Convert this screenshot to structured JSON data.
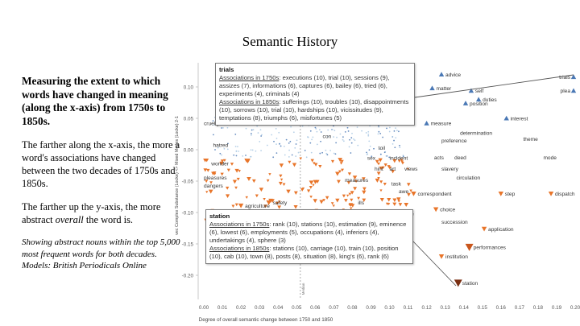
{
  "slide": {
    "title": "Semantic History",
    "heading": "Measuring the extent to which words have changed in meaning (along the x-axis) from 1750s to 1850s.",
    "para1": "The farther along the x-axis, the more a word's associations have changed between the two decades of 1750s and 1850s.",
    "para2_a": "The farther up the y-axis, the more abstract ",
    "para2_em": "overall",
    "para2_b": " the word is.",
    "note1": "Showing abstract nouns within the top 5,000 most frequent words for both decades.",
    "note2": "Models: British Periodicals Online"
  },
  "tooltips": {
    "trials": {
      "word": "trials",
      "label_1750": "Associations in 1750s",
      "text_1750": ": executions (10), trial (10), sessions (9), assizes (7), informations (6), captures (6), bailey (6), tried (6), experiments (4), criminals (4)",
      "label_1850": "Associations in 1850s",
      "text_1850": ": sufferings (10), troubles (10), disappointments (10), sorrows (10), trial (10), hardships (10), vicissitudes (9), temptations (8), triumphs (6), misfortunes (5)"
    },
    "station": {
      "word": "station",
      "label_1750": "Associations in 1750s",
      "text_1750": ": rank (10), stations (10), estimation (9), eminence (6), lowest (6), employments (5), occupations (4), inferiors (4), undertakings (4), sphere (3)",
      "label_1850": "Associations in 1850s",
      "text_1850": ": stations (10), carriage (10), train (10), position (10), cab (10), town (8), posts (8), situation (8), king's (6), rank (6)"
    }
  },
  "chart_data": {
    "type": "scatter",
    "title": "",
    "xlabel": "Degree of overall semantic change between 1750 and 1850",
    "ylabel": "vec Complex Substance (Locke) <> Mixed Modes (Locke) 2-1",
    "xlim": [
      0.0,
      0.2
    ],
    "ylim": [
      -0.22,
      0.135
    ],
    "x_ticks": [
      "0.00",
      "0.01",
      "0.02",
      "0.03",
      "0.04",
      "0.05",
      "0.06",
      "0.07",
      "0.08",
      "0.09",
      "0.10",
      "0.11",
      "0.12",
      "0.13",
      "0.14",
      "0.15",
      "0.16",
      "0.17",
      "0.18",
      "0.19",
      "0.20"
    ],
    "y_ticks": [
      0.1,
      0.05,
      0.0,
      -0.05,
      -0.1,
      -0.15,
      -0.2
    ],
    "y_tick_labels": [
      "0.10",
      "0.05",
      "0.00",
      "-0.05",
      "-0.10",
      "-0.15",
      "-0.20"
    ],
    "median_label": "Median",
    "median_x": 0.052,
    "colors": {
      "abstract": "#4a78b5",
      "concrete": "#e8752a",
      "neutral": "#a9c8e3",
      "tooltip_border": "#7a7a7a",
      "axis": "#bdbdbd"
    },
    "labeled_points": [
      {
        "word": "advice",
        "x": 0.128,
        "y": 0.12,
        "marker": "triangle-up"
      },
      {
        "word": "trials",
        "x": 0.2,
        "y": 0.116,
        "marker": "triangle-up"
      },
      {
        "word": "matter",
        "x": 0.123,
        "y": 0.098,
        "marker": "triangle-up"
      },
      {
        "word": "self",
        "x": 0.144,
        "y": 0.094,
        "marker": "triangle-up"
      },
      {
        "word": "plea",
        "x": 0.2,
        "y": 0.094,
        "marker": "triangle-up"
      },
      {
        "word": "duties",
        "x": 0.148,
        "y": 0.08,
        "marker": "triangle-up"
      },
      {
        "word": "position",
        "x": 0.141,
        "y": 0.074,
        "marker": "triangle-up"
      },
      {
        "word": "interest",
        "x": 0.163,
        "y": 0.05,
        "marker": "triangle-up"
      },
      {
        "word": "measure",
        "x": 0.12,
        "y": 0.042,
        "marker": "triangle-up"
      },
      {
        "word": "determination",
        "x": 0.138,
        "y": 0.027,
        "marker": "none"
      },
      {
        "word": "theme",
        "x": 0.172,
        "y": 0.017,
        "marker": "none"
      },
      {
        "word": "preference",
        "x": 0.128,
        "y": 0.015,
        "marker": "none"
      },
      {
        "word": "cruelty",
        "x": 0.0,
        "y": 0.042,
        "marker": "none"
      },
      {
        "word": "hatred",
        "x": 0.005,
        "y": 0.008,
        "marker": "none"
      },
      {
        "word": "con",
        "x": 0.064,
        "y": 0.022,
        "marker": "none"
      },
      {
        "word": "toil",
        "x": 0.094,
        "y": 0.003,
        "marker": "none"
      },
      {
        "word": "sex",
        "x": 0.088,
        "y": -0.013,
        "marker": "none"
      },
      {
        "word": "incident",
        "x": 0.1,
        "y": -0.013,
        "marker": "none"
      },
      {
        "word": "acts",
        "x": 0.124,
        "y": -0.012,
        "marker": "none"
      },
      {
        "word": "deed",
        "x": 0.135,
        "y": -0.012,
        "marker": "none"
      },
      {
        "word": "mode",
        "x": 0.19,
        "y": -0.012,
        "marker": "none"
      },
      {
        "word": "hint",
        "x": 0.092,
        "y": -0.03,
        "marker": "none"
      },
      {
        "word": "art",
        "x": 0.1,
        "y": -0.03,
        "marker": "none"
      },
      {
        "word": "views",
        "x": 0.108,
        "y": -0.03,
        "marker": "none"
      },
      {
        "word": "slavery",
        "x": 0.128,
        "y": -0.03,
        "marker": "none"
      },
      {
        "word": "wonder",
        "x": 0.004,
        "y": -0.022,
        "marker": "none"
      },
      {
        "word": "pleasures",
        "x": 0.0,
        "y": -0.044,
        "marker": "none"
      },
      {
        "word": "dangers",
        "x": 0.0,
        "y": -0.057,
        "marker": "none"
      },
      {
        "word": "measures",
        "x": 0.076,
        "y": -0.048,
        "marker": "none"
      },
      {
        "word": "task",
        "x": 0.101,
        "y": -0.054,
        "marker": "none"
      },
      {
        "word": "circulation",
        "x": 0.136,
        "y": -0.044,
        "marker": "none"
      },
      {
        "word": "awe",
        "x": 0.105,
        "y": -0.066,
        "marker": "none"
      },
      {
        "word": "correspondent",
        "x": 0.113,
        "y": -0.07,
        "marker": "triangle-down"
      },
      {
        "word": "step",
        "x": 0.16,
        "y": -0.07,
        "marker": "triangle-down"
      },
      {
        "word": "dispatch",
        "x": 0.187,
        "y": -0.07,
        "marker": "triangle-down"
      },
      {
        "word": "safety",
        "x": 0.035,
        "y": -0.084,
        "marker": "triangle-down"
      },
      {
        "word": "agriculture",
        "x": 0.02,
        "y": -0.089,
        "marker": "triangle-down"
      },
      {
        "word": "ills",
        "x": 0.083,
        "y": -0.084,
        "marker": "none"
      },
      {
        "word": "choice",
        "x": 0.125,
        "y": -0.095,
        "marker": "triangle-down"
      },
      {
        "word": "guide",
        "x": 0.104,
        "y": -0.102,
        "marker": "triangle-down"
      },
      {
        "word": "characters",
        "x": 0.078,
        "y": -0.112,
        "marker": "triangle-down"
      },
      {
        "word": "succession",
        "x": 0.128,
        "y": -0.115,
        "marker": "none"
      },
      {
        "word": "application",
        "x": 0.151,
        "y": -0.126,
        "marker": "triangle-down"
      },
      {
        "word": "performances",
        "x": 0.143,
        "y": -0.155,
        "marker": "triangle-down"
      },
      {
        "word": "institution",
        "x": 0.128,
        "y": -0.17,
        "marker": "triangle-down"
      },
      {
        "word": "station",
        "x": 0.137,
        "y": -0.212,
        "marker": "triangle-down"
      }
    ],
    "blue_dot_clusters": [
      {
        "x_range": [
          0.005,
          0.108
        ],
        "y_range": [
          -0.012,
          0.052
        ],
        "count": 200
      }
    ],
    "orange_marker_clusters": [
      {
        "x_range": [
          0.0,
          0.112
        ],
        "y_range": [
          -0.118,
          -0.014
        ],
        "count": 170
      }
    ]
  }
}
